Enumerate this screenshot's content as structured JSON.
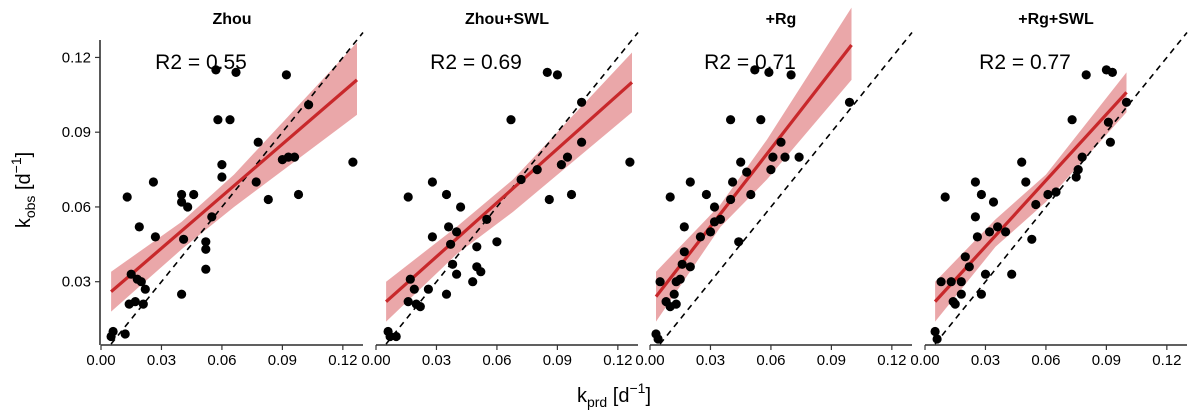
{
  "chart_data": {
    "type": "scatter",
    "x_axis": {
      "label": "k",
      "label_sub": "prd",
      "label_unit_open": " [d",
      "label_unit_sup": "−1",
      "label_unit_close": "]",
      "range": [
        0,
        0.13
      ],
      "ticks": [
        0.0,
        0.03,
        0.06,
        0.09,
        0.12
      ],
      "tick_labels": [
        "0.00",
        "0.03",
        "0.06",
        "0.09",
        "0.12"
      ]
    },
    "y_axis": {
      "label": "k",
      "label_sub": "obs",
      "label_unit_open": " [d",
      "label_unit_sup": "−1",
      "label_unit_close": "]",
      "range": [
        0.005,
        0.127
      ],
      "ticks": [
        0.03,
        0.06,
        0.09,
        0.12
      ],
      "tick_labels": [
        "0.03",
        "0.06",
        "0.09",
        "0.12"
      ]
    },
    "colors": {
      "fit_line": "#c8282b",
      "ribbon": "#e9a2a4",
      "points": "#000000",
      "reference": "#000000"
    },
    "reference_line": "1:1 dashed",
    "panels": [
      {
        "title": "Zhou",
        "annotation": "R2 = 0.55",
        "fit": {
          "x": [
            0.005,
            0.127
          ],
          "y": [
            0.026,
            0.111
          ]
        },
        "ribbon": {
          "x": [
            0.005,
            0.04,
            0.066,
            0.127
          ],
          "upper": [
            0.034,
            0.054,
            0.073,
            0.126
          ],
          "lower": [
            0.018,
            0.043,
            0.06,
            0.097
          ]
        },
        "points": [
          [
            0.005,
            0.008
          ],
          [
            0.006,
            0.01
          ],
          [
            0.012,
            0.009
          ],
          [
            0.013,
            0.064
          ],
          [
            0.014,
            0.021
          ],
          [
            0.015,
            0.033
          ],
          [
            0.017,
            0.022
          ],
          [
            0.018,
            0.031
          ],
          [
            0.019,
            0.052
          ],
          [
            0.02,
            0.03
          ],
          [
            0.021,
            0.021
          ],
          [
            0.022,
            0.027
          ],
          [
            0.026,
            0.07
          ],
          [
            0.027,
            0.048
          ],
          [
            0.04,
            0.065
          ],
          [
            0.04,
            0.062
          ],
          [
            0.04,
            0.025
          ],
          [
            0.041,
            0.047
          ],
          [
            0.043,
            0.06
          ],
          [
            0.046,
            0.065
          ],
          [
            0.052,
            0.046
          ],
          [
            0.052,
            0.043
          ],
          [
            0.052,
            0.035
          ],
          [
            0.055,
            0.056
          ],
          [
            0.057,
            0.115
          ],
          [
            0.058,
            0.095
          ],
          [
            0.06,
            0.077
          ],
          [
            0.06,
            0.072
          ],
          [
            0.064,
            0.095
          ],
          [
            0.067,
            0.114
          ],
          [
            0.077,
            0.07
          ],
          [
            0.078,
            0.086
          ],
          [
            0.083,
            0.063
          ],
          [
            0.09,
            0.079
          ],
          [
            0.092,
            0.113
          ],
          [
            0.093,
            0.08
          ],
          [
            0.096,
            0.08
          ],
          [
            0.098,
            0.065
          ],
          [
            0.103,
            0.101
          ],
          [
            0.125,
            0.078
          ]
        ]
      },
      {
        "title": "Zhou+SWL",
        "annotation": "R2 = 0.69",
        "fit": {
          "x": [
            0.005,
            0.127
          ],
          "y": [
            0.022,
            0.11
          ]
        },
        "ribbon": {
          "x": [
            0.005,
            0.04,
            0.068,
            0.127
          ],
          "upper": [
            0.03,
            0.052,
            0.071,
            0.122
          ],
          "lower": [
            0.014,
            0.041,
            0.058,
            0.098
          ]
        },
        "points": [
          [
            0.006,
            0.01
          ],
          [
            0.007,
            0.008
          ],
          [
            0.01,
            0.008
          ],
          [
            0.016,
            0.064
          ],
          [
            0.016,
            0.022
          ],
          [
            0.017,
            0.031
          ],
          [
            0.019,
            0.027
          ],
          [
            0.02,
            0.021
          ],
          [
            0.022,
            0.02
          ],
          [
            0.026,
            0.027
          ],
          [
            0.028,
            0.07
          ],
          [
            0.028,
            0.048
          ],
          [
            0.035,
            0.065
          ],
          [
            0.035,
            0.025
          ],
          [
            0.036,
            0.052
          ],
          [
            0.037,
            0.045
          ],
          [
            0.038,
            0.037
          ],
          [
            0.04,
            0.05
          ],
          [
            0.04,
            0.033
          ],
          [
            0.042,
            0.06
          ],
          [
            0.048,
            0.03
          ],
          [
            0.05,
            0.044
          ],
          [
            0.05,
            0.036
          ],
          [
            0.052,
            0.034
          ],
          [
            0.055,
            0.055
          ],
          [
            0.06,
            0.046
          ],
          [
            0.067,
            0.095
          ],
          [
            0.072,
            0.071
          ],
          [
            0.08,
            0.075
          ],
          [
            0.085,
            0.114
          ],
          [
            0.086,
            0.063
          ],
          [
            0.09,
            0.113
          ],
          [
            0.092,
            0.077
          ],
          [
            0.095,
            0.08
          ],
          [
            0.097,
            0.065
          ],
          [
            0.102,
            0.086
          ],
          [
            0.102,
            0.102
          ],
          [
            0.126,
            0.078
          ]
        ]
      },
      {
        "title": "+Rg",
        "annotation": "R2 = 0.71",
        "fit": {
          "x": [
            0.003,
            0.1
          ],
          "y": [
            0.024,
            0.125
          ]
        },
        "ribbon": {
          "x": [
            0.003,
            0.035,
            0.058,
            0.1
          ],
          "upper": [
            0.034,
            0.061,
            0.087,
            0.14
          ],
          "lower": [
            0.014,
            0.052,
            0.071,
            0.111
          ]
        },
        "points": [
          [
            0.003,
            0.009
          ],
          [
            0.004,
            0.007
          ],
          [
            0.005,
            0.03
          ],
          [
            0.008,
            0.022
          ],
          [
            0.01,
            0.064
          ],
          [
            0.01,
            0.02
          ],
          [
            0.012,
            0.025
          ],
          [
            0.013,
            0.021
          ],
          [
            0.013,
            0.03
          ],
          [
            0.015,
            0.031
          ],
          [
            0.016,
            0.037
          ],
          [
            0.017,
            0.042
          ],
          [
            0.017,
            0.052
          ],
          [
            0.02,
            0.07
          ],
          [
            0.02,
            0.036
          ],
          [
            0.025,
            0.048
          ],
          [
            0.028,
            0.065
          ],
          [
            0.03,
            0.05
          ],
          [
            0.032,
            0.06
          ],
          [
            0.032,
            0.054
          ],
          [
            0.035,
            0.055
          ],
          [
            0.04,
            0.063
          ],
          [
            0.04,
            0.095
          ],
          [
            0.041,
            0.07
          ],
          [
            0.044,
            0.046
          ],
          [
            0.045,
            0.078
          ],
          [
            0.048,
            0.074
          ],
          [
            0.05,
            0.065
          ],
          [
            0.052,
            0.115
          ],
          [
            0.055,
            0.095
          ],
          [
            0.059,
            0.114
          ],
          [
            0.06,
            0.075
          ],
          [
            0.061,
            0.08
          ],
          [
            0.065,
            0.086
          ],
          [
            0.067,
            0.08
          ],
          [
            0.07,
            0.113
          ],
          [
            0.074,
            0.08
          ],
          [
            0.099,
            0.102
          ]
        ]
      },
      {
        "title": "+Rg+SWL",
        "annotation": "R2 = 0.77",
        "fit": {
          "x": [
            0.005,
            0.1
          ],
          "y": [
            0.022,
            0.106
          ]
        },
        "ribbon": {
          "x": [
            0.005,
            0.035,
            0.06,
            0.1
          ],
          "upper": [
            0.03,
            0.055,
            0.073,
            0.114
          ],
          "lower": [
            0.014,
            0.044,
            0.062,
            0.098
          ]
        },
        "points": [
          [
            0.005,
            0.01
          ],
          [
            0.006,
            0.007
          ],
          [
            0.008,
            0.03
          ],
          [
            0.01,
            0.064
          ],
          [
            0.013,
            0.03
          ],
          [
            0.014,
            0.022
          ],
          [
            0.015,
            0.021
          ],
          [
            0.018,
            0.025
          ],
          [
            0.018,
            0.03
          ],
          [
            0.02,
            0.04
          ],
          [
            0.022,
            0.036
          ],
          [
            0.025,
            0.07
          ],
          [
            0.025,
            0.056
          ],
          [
            0.026,
            0.048
          ],
          [
            0.028,
            0.065
          ],
          [
            0.028,
            0.025
          ],
          [
            0.03,
            0.033
          ],
          [
            0.032,
            0.05
          ],
          [
            0.034,
            0.062
          ],
          [
            0.036,
            0.052
          ],
          [
            0.04,
            0.05
          ],
          [
            0.043,
            0.033
          ],
          [
            0.048,
            0.078
          ],
          [
            0.05,
            0.07
          ],
          [
            0.053,
            0.047
          ],
          [
            0.055,
            0.061
          ],
          [
            0.061,
            0.065
          ],
          [
            0.065,
            0.066
          ],
          [
            0.073,
            0.095
          ],
          [
            0.075,
            0.072
          ],
          [
            0.076,
            0.075
          ],
          [
            0.078,
            0.08
          ],
          [
            0.08,
            0.113
          ],
          [
            0.09,
            0.115
          ],
          [
            0.091,
            0.094
          ],
          [
            0.092,
            0.086
          ],
          [
            0.093,
            0.114
          ],
          [
            0.1,
            0.102
          ]
        ]
      }
    ]
  }
}
